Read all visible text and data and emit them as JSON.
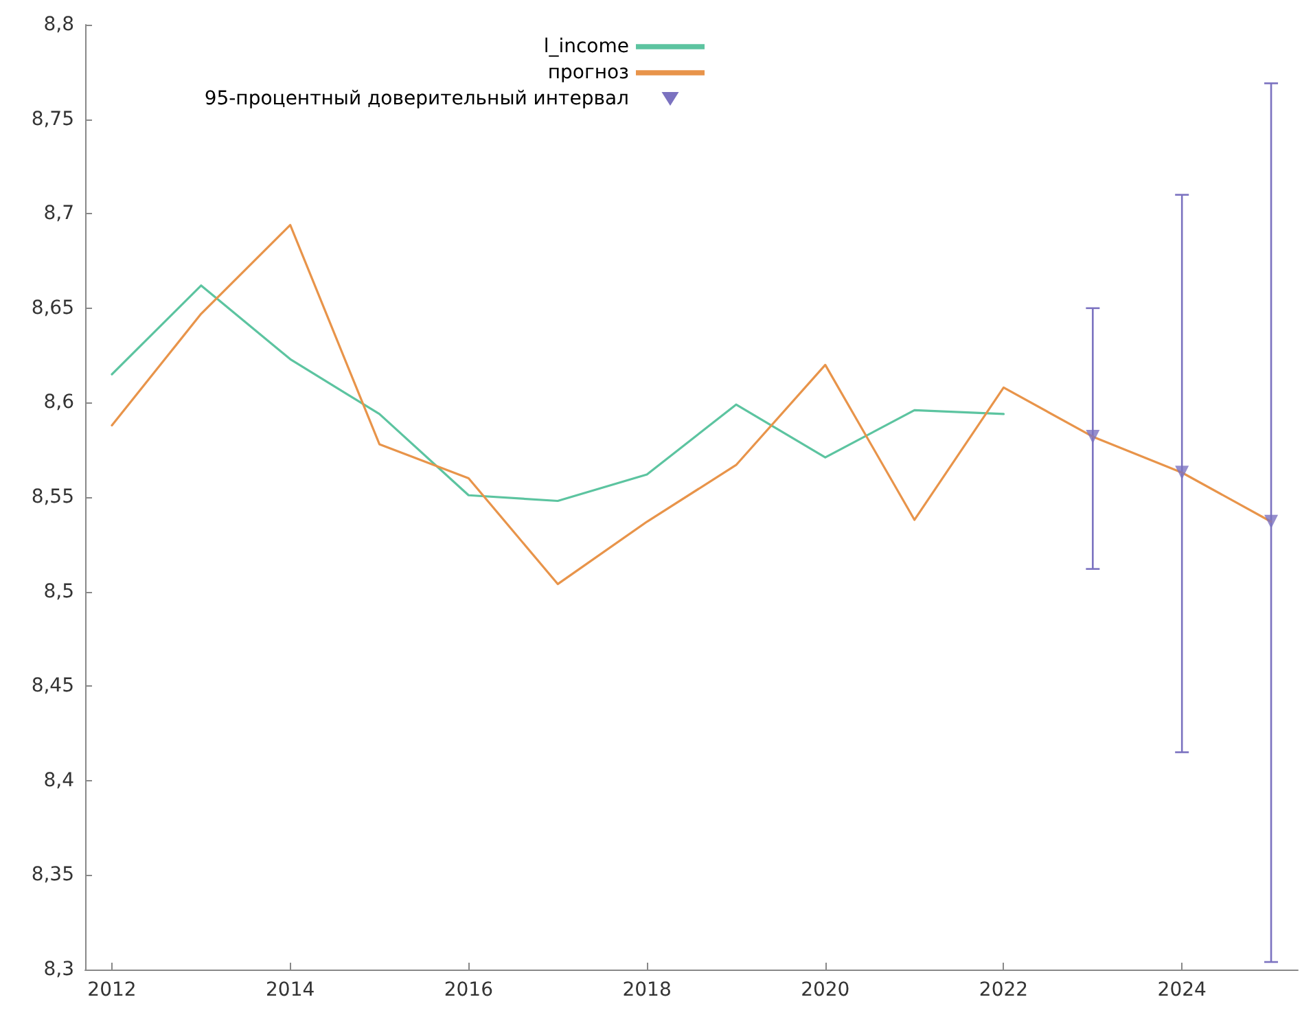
{
  "chart_data": {
    "type": "line",
    "xlim": [
      2011.7,
      2025.3
    ],
    "xticks": [
      2012,
      2014,
      2016,
      2018,
      2020,
      2022,
      2024
    ],
    "ylim": [
      8.3,
      8.8
    ],
    "yticks": [
      {
        "value": 8.3,
        "label": "8,3"
      },
      {
        "value": 8.35,
        "label": "8,35"
      },
      {
        "value": 8.4,
        "label": "8,4"
      },
      {
        "value": 8.45,
        "label": "8,45"
      },
      {
        "value": 8.5,
        "label": "8,5"
      },
      {
        "value": 8.55,
        "label": "8,55"
      },
      {
        "value": 8.6,
        "label": "8,6"
      },
      {
        "value": 8.65,
        "label": "8,65"
      },
      {
        "value": 8.7,
        "label": "8,7"
      },
      {
        "value": 8.75,
        "label": "8,75"
      },
      {
        "value": 8.8,
        "label": "8,8"
      }
    ],
    "grid": false,
    "legend": "top",
    "marker": "none",
    "line_style": "solid",
    "series": [
      {
        "name": "l_income",
        "type": "line",
        "color": "#5cc4a0",
        "x": [
          2012,
          2013,
          2014,
          2015,
          2016,
          2017,
          2018,
          2019,
          2020,
          2021,
          2022
        ],
        "values": [
          8.615,
          8.662,
          8.623,
          8.594,
          8.551,
          8.548,
          8.562,
          8.599,
          8.571,
          8.596,
          8.594
        ]
      },
      {
        "name": "прогноз",
        "type": "line",
        "color": "#e8944a",
        "x": [
          2012,
          2013,
          2014,
          2015,
          2016,
          2017,
          2018,
          2019,
          2020,
          2021,
          2022,
          2023,
          2024,
          2025
        ],
        "values": [
          8.588,
          8.647,
          8.694,
          8.578,
          8.56,
          8.504,
          8.537,
          8.567,
          8.62,
          8.538,
          8.608,
          8.582,
          8.563,
          8.537
        ]
      },
      {
        "name": "95-процентный доверительный интервал",
        "type": "scatter",
        "marker": "triangle",
        "color": "#7b72c0",
        "x": [
          2023,
          2024,
          2025
        ],
        "values": [
          8.582,
          8.563,
          8.537
        ],
        "errors": [
          [
            8.512,
            8.65
          ],
          [
            8.415,
            8.71
          ],
          [
            8.304,
            8.769
          ]
        ]
      }
    ]
  }
}
